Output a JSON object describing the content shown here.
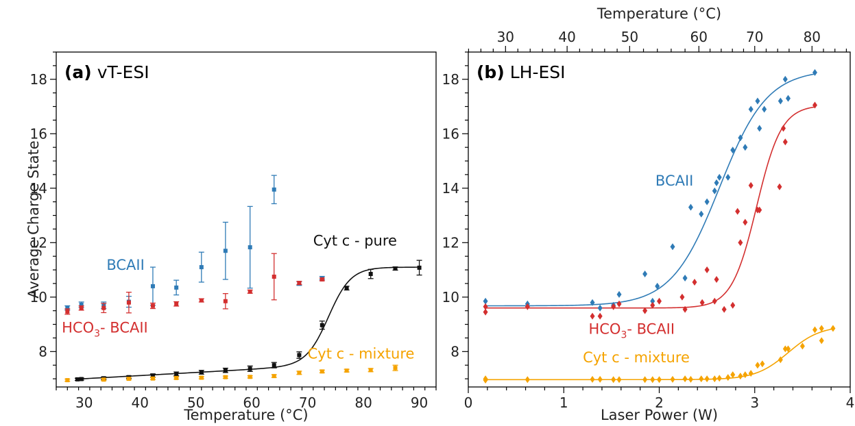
{
  "colors": {
    "black": "#111111",
    "blue": "#2f7bb6",
    "red": "#d32f2f",
    "orange": "#f5a300"
  },
  "chart_data": [
    {
      "panel": "a",
      "type": "scatter",
      "title_bold": "(a)",
      "title": "vT-ESI",
      "xlabel": "Temperature (°C)",
      "ylabel": "Average Charge State",
      "xlim": [
        25,
        93
      ],
      "ylim": [
        6.7,
        19
      ],
      "xticks": [
        30,
        40,
        50,
        60,
        70,
        80,
        90
      ],
      "yticks": [
        8,
        10,
        12,
        14,
        16,
        18
      ],
      "annotations": [
        {
          "text": "BCAII",
          "color": "#2f7bb6",
          "x": 34,
          "y": 11.0
        },
        {
          "text": "HCO",
          "sub": "3",
          "tail": "- BCAII",
          "color": "#d32f2f",
          "x": 26,
          "y": 8.7
        },
        {
          "text": "Cyt c - pure",
          "color": "#111111",
          "x": 71,
          "y": 11.9
        },
        {
          "text": "Cyt c - mixture",
          "color": "#f5a300",
          "x": 70,
          "y": 7.75
        }
      ],
      "series": [
        {
          "name": "BCAII",
          "color": "#2f7bb6",
          "marker": "square",
          "points": [
            [
              27,
              9.6,
              0.08
            ],
            [
              29.5,
              9.72,
              0.1
            ],
            [
              33.5,
              9.7,
              0.12
            ],
            [
              38,
              9.83,
              0.2
            ],
            [
              42.3,
              10.4,
              0.7
            ],
            [
              46.5,
              10.35,
              0.27
            ],
            [
              51,
              11.1,
              0.55
            ],
            [
              55.3,
              11.7,
              1.05
            ],
            [
              59.7,
              11.83,
              1.5
            ],
            [
              64,
              13.95,
              0.52
            ],
            [
              68.5,
              10.5,
              0.07
            ],
            [
              72.6,
              10.7,
              0.06
            ]
          ]
        },
        {
          "name": "HCO3- BCAII",
          "color": "#d32f2f",
          "marker": "square",
          "points": [
            [
              27,
              9.47,
              0.1
            ],
            [
              29.5,
              9.6,
              0.08
            ],
            [
              33.5,
              9.6,
              0.17
            ],
            [
              38,
              9.8,
              0.38
            ],
            [
              42.3,
              9.68,
              0.1
            ],
            [
              46.5,
              9.75,
              0.08
            ],
            [
              51,
              9.88,
              0.06
            ],
            [
              55.3,
              9.85,
              0.28
            ],
            [
              59.7,
              10.2,
              0.06
            ],
            [
              64,
              10.75,
              0.85
            ],
            [
              68.5,
              10.52,
              0.06
            ],
            [
              72.6,
              10.65,
              0.05
            ]
          ]
        },
        {
          "name": "Cyt c - pure",
          "color": "#111111",
          "marker": "square",
          "points": [
            [
              28.8,
              6.98,
              0.04
            ],
            [
              29.5,
              6.99,
              0.04
            ],
            [
              33.5,
              7.02,
              0.05
            ],
            [
              38,
              7.06,
              0.05
            ],
            [
              42.3,
              7.12,
              0.06
            ],
            [
              46.5,
              7.18,
              0.07
            ],
            [
              51,
              7.24,
              0.07
            ],
            [
              55.3,
              7.31,
              0.08
            ],
            [
              59.7,
              7.37,
              0.1
            ],
            [
              64,
              7.5,
              0.1
            ],
            [
              68.5,
              7.87,
              0.12
            ],
            [
              72.6,
              8.97,
              0.15
            ],
            [
              77,
              10.33,
              0.07
            ],
            [
              81.3,
              10.85,
              0.17
            ],
            [
              85.7,
              11.05,
              0.06
            ],
            [
              90,
              11.08,
              0.27
            ]
          ]
        },
        {
          "name": "Cyt c - mixture",
          "color": "#f5a300",
          "marker": "square",
          "points": [
            [
              27,
              6.95,
              0.04
            ],
            [
              33.5,
              6.97,
              0.04
            ],
            [
              38,
              7.0,
              0.04
            ],
            [
              42.3,
              7.01,
              0.04
            ],
            [
              46.5,
              7.03,
              0.04
            ],
            [
              51,
              7.04,
              0.04
            ],
            [
              55.3,
              7.06,
              0.04
            ],
            [
              59.7,
              7.07,
              0.04
            ],
            [
              64,
              7.1,
              0.05
            ],
            [
              68.5,
              7.22,
              0.06
            ],
            [
              72.6,
              7.27,
              0.05
            ],
            [
              77,
              7.3,
              0.05
            ],
            [
              81.3,
              7.32,
              0.06
            ],
            [
              85.7,
              7.4,
              0.1
            ]
          ]
        }
      ],
      "fits": [
        {
          "series": "Cyt c - pure",
          "color": "#111111",
          "x": [
            28.5,
            90
          ],
          "params": {
            "base": 6.98,
            "slope": 0.0115,
            "top": 11.1,
            "mid": 73.8,
            "width": 2.0
          }
        }
      ]
    },
    {
      "panel": "b",
      "type": "scatter",
      "title_bold": "(b)",
      "title": "LH-ESI",
      "xlabel": "Laser Power (W)",
      "x2label": "Temperature (°C)",
      "ylabel": "",
      "xlim": [
        0,
        4
      ],
      "ylim": [
        6.7,
        19
      ],
      "xticks": [
        0,
        1,
        2,
        3,
        4
      ],
      "yticks": [
        8,
        10,
        12,
        14,
        16,
        18
      ],
      "top_axis": {
        "ticks": [
          30,
          40,
          50,
          60,
          70,
          80
        ],
        "positions_w": [
          0.39,
          1.035,
          1.69,
          2.415,
          3.0,
          3.6
        ]
      },
      "annotations": [
        {
          "text": "BCAII",
          "color": "#2f7bb6",
          "x": 1.96,
          "y": 14.1
        },
        {
          "text": "HCO",
          "sub": "3",
          "tail": "- BCAII",
          "color": "#d32f2f",
          "x": 1.26,
          "y": 8.65
        },
        {
          "text": "Cyt c - mixture",
          "color": "#f5a300",
          "x": 1.2,
          "y": 7.6
        }
      ],
      "series": [
        {
          "name": "BCAII",
          "color": "#2f7bb6",
          "marker": "diamond",
          "points": [
            [
              0.18,
              9.85
            ],
            [
              0.62,
              9.75
            ],
            [
              1.3,
              9.8
            ],
            [
              1.38,
              9.6
            ],
            [
              1.52,
              9.7
            ],
            [
              1.58,
              10.1
            ],
            [
              1.85,
              10.85
            ],
            [
              1.93,
              9.85
            ],
            [
              1.98,
              10.4
            ],
            [
              2.14,
              11.85
            ],
            [
              2.27,
              10.7
            ],
            [
              2.33,
              13.3
            ],
            [
              2.44,
              13.05
            ],
            [
              2.5,
              13.5
            ],
            [
              2.58,
              13.9
            ],
            [
              2.6,
              14.2
            ],
            [
              2.63,
              14.4
            ],
            [
              2.72,
              14.4
            ],
            [
              2.77,
              15.4
            ],
            [
              2.85,
              15.85
            ],
            [
              2.9,
              15.5
            ],
            [
              2.96,
              16.9
            ],
            [
              3.03,
              17.2
            ],
            [
              3.05,
              16.2
            ],
            [
              3.1,
              16.9
            ],
            [
              3.27,
              17.2
            ],
            [
              3.32,
              18.0
            ],
            [
              3.35,
              17.3
            ],
            [
              3.63,
              18.25
            ]
          ]
        },
        {
          "name": "HCO3- BCAII",
          "color": "#d32f2f",
          "marker": "diamond",
          "points": [
            [
              0.18,
              9.45
            ],
            [
              0.18,
              9.65
            ],
            [
              0.62,
              9.65
            ],
            [
              1.3,
              9.3
            ],
            [
              1.38,
              9.3
            ],
            [
              1.52,
              9.65
            ],
            [
              1.58,
              9.75
            ],
            [
              1.85,
              9.5
            ],
            [
              1.93,
              9.7
            ],
            [
              2.0,
              9.85
            ],
            [
              2.24,
              10.0
            ],
            [
              2.27,
              9.55
            ],
            [
              2.37,
              10.55
            ],
            [
              2.45,
              9.8
            ],
            [
              2.5,
              11.0
            ],
            [
              2.58,
              9.85
            ],
            [
              2.6,
              10.65
            ],
            [
              2.68,
              9.55
            ],
            [
              2.77,
              9.7
            ],
            [
              2.82,
              13.15
            ],
            [
              2.85,
              12.0
            ],
            [
              2.9,
              12.75
            ],
            [
              2.96,
              14.1
            ],
            [
              3.03,
              13.2
            ],
            [
              3.05,
              13.2
            ],
            [
              3.26,
              14.05
            ],
            [
              3.3,
              16.2
            ],
            [
              3.32,
              15.7
            ],
            [
              3.63,
              17.05
            ]
          ]
        },
        {
          "name": "Cyt c - mixture",
          "color": "#f5a300",
          "marker": "diamond",
          "points": [
            [
              0.18,
              6.95
            ],
            [
              0.18,
              7.0
            ],
            [
              0.62,
              6.97
            ],
            [
              1.3,
              6.98
            ],
            [
              1.38,
              6.98
            ],
            [
              1.52,
              6.97
            ],
            [
              1.58,
              6.97
            ],
            [
              1.85,
              6.97
            ],
            [
              1.93,
              6.97
            ],
            [
              2.0,
              6.97
            ],
            [
              2.14,
              6.98
            ],
            [
              2.27,
              7.0
            ],
            [
              2.33,
              6.98
            ],
            [
              2.44,
              7.0
            ],
            [
              2.5,
              7.0
            ],
            [
              2.58,
              7.0
            ],
            [
              2.63,
              7.02
            ],
            [
              2.72,
              7.05
            ],
            [
              2.77,
              7.15
            ],
            [
              2.85,
              7.1
            ],
            [
              2.9,
              7.15
            ],
            [
              2.96,
              7.2
            ],
            [
              3.03,
              7.5
            ],
            [
              3.08,
              7.55
            ],
            [
              3.27,
              7.7
            ],
            [
              3.32,
              8.1
            ],
            [
              3.35,
              8.1
            ],
            [
              3.5,
              8.2
            ],
            [
              3.63,
              8.8
            ],
            [
              3.7,
              8.85
            ],
            [
              3.7,
              8.4
            ],
            [
              3.82,
              8.85
            ]
          ]
        }
      ],
      "fits": [
        {
          "series": "BCAII",
          "color": "#2f7bb6",
          "x": [
            0.18,
            3.63
          ],
          "params": {
            "bottom": 9.68,
            "top": 18.35,
            "mid": 2.63,
            "width": 0.25
          }
        },
        {
          "series": "HCO3- BCAII",
          "color": "#d32f2f",
          "x": [
            0.18,
            3.63
          ],
          "params": {
            "bottom": 9.6,
            "top": 17.05,
            "mid": 3.02,
            "width": 0.13
          }
        },
        {
          "series": "Cyt c - mixture",
          "color": "#f5a300",
          "x": [
            0.18,
            3.82
          ],
          "params": {
            "bottom": 6.97,
            "top": 8.95,
            "mid": 3.35,
            "width": 0.17
          }
        }
      ]
    }
  ]
}
